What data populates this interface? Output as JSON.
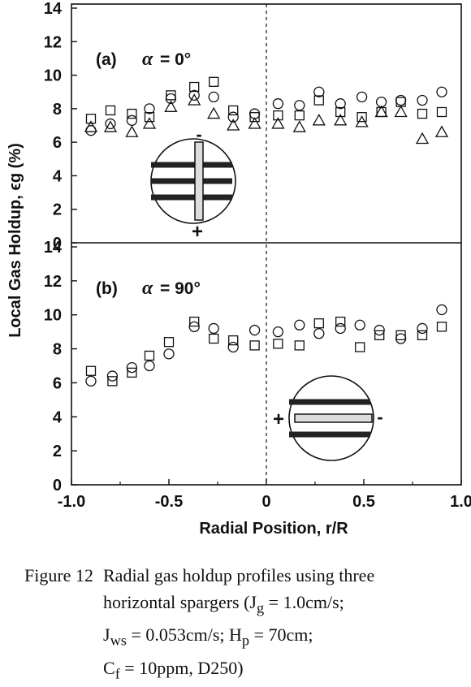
{
  "chart_data": [
    {
      "type": "scatter",
      "panel_label": "(b)",
      "alpha_symbol": "α",
      "panel_angle": "= 90°",
      "xlabel": "Radial Position, r/R",
      "ylabel": "Local Gas Holdup, ϵg (%)",
      "xlim": [
        -1.0,
        1.0
      ],
      "ylim": [
        0,
        14
      ],
      "x_ticks": [
        "-1.0",
        "-0.5",
        "0",
        "0.5",
        "1.0"
      ],
      "y_ticks": [
        "0",
        "2",
        "4",
        "6",
        "8",
        "10",
        "12",
        "14"
      ],
      "series": [
        {
          "marker": "square",
          "x": [
            -0.9,
            -0.79,
            -0.69,
            -0.6,
            -0.5,
            -0.37,
            -0.27,
            -0.17,
            -0.06,
            0.06,
            0.17,
            0.27,
            0.38,
            0.48,
            0.58,
            0.69,
            0.8,
            0.9
          ],
          "y": [
            6.7,
            6.1,
            6.6,
            7.6,
            8.4,
            9.6,
            8.6,
            8.5,
            8.2,
            8.3,
            8.2,
            9.5,
            9.6,
            8.1,
            8.8,
            8.8,
            8.8,
            9.3
          ]
        },
        {
          "marker": "circle",
          "x": [
            -0.9,
            -0.79,
            -0.69,
            -0.6,
            -0.5,
            -0.37,
            -0.27,
            -0.17,
            -0.06,
            0.06,
            0.17,
            0.27,
            0.38,
            0.48,
            0.58,
            0.69,
            0.8,
            0.9
          ],
          "y": [
            6.1,
            6.4,
            6.9,
            7.0,
            7.7,
            9.3,
            9.2,
            8.1,
            9.1,
            9.0,
            9.4,
            8.9,
            9.2,
            9.4,
            9.1,
            8.6,
            9.2,
            10.3
          ]
        }
      ],
      "inset": {
        "plus": "+",
        "minus": "-"
      }
    },
    {
      "type": "scatter",
      "panel_label": "(a)",
      "alpha_symbol": "α",
      "panel_angle": "= 0°",
      "xlim": [
        -1.0,
        1.0
      ],
      "ylim": [
        0,
        14
      ],
      "y_ticks": [
        "0",
        "2",
        "4",
        "6",
        "8",
        "10",
        "12",
        "14"
      ],
      "series": [
        {
          "marker": "square",
          "x": [
            -0.9,
            -0.8,
            -0.69,
            -0.6,
            -0.49,
            -0.37,
            -0.27,
            -0.17,
            -0.06,
            0.06,
            0.17,
            0.27,
            0.38,
            0.49,
            0.59,
            0.69,
            0.8,
            0.9
          ],
          "y": [
            7.4,
            7.9,
            7.7,
            7.5,
            8.8,
            9.3,
            9.6,
            7.9,
            7.5,
            7.6,
            7.6,
            8.5,
            7.8,
            7.5,
            7.8,
            8.4,
            7.7,
            7.8
          ]
        },
        {
          "marker": "circle",
          "x": [
            -0.9,
            -0.8,
            -0.69,
            -0.6,
            -0.49,
            -0.37,
            -0.27,
            -0.17,
            -0.06,
            0.06,
            0.17,
            0.27,
            0.38,
            0.49,
            0.59,
            0.69,
            0.8,
            0.9
          ],
          "y": [
            6.7,
            7.1,
            7.3,
            8.0,
            8.6,
            8.8,
            8.7,
            7.5,
            7.7,
            8.3,
            8.2,
            9.0,
            8.3,
            8.7,
            8.4,
            8.5,
            8.5,
            9.0
          ]
        },
        {
          "marker": "triangle",
          "x": [
            -0.9,
            -0.8,
            -0.69,
            -0.6,
            -0.49,
            -0.37,
            -0.27,
            -0.17,
            -0.06,
            0.06,
            0.17,
            0.27,
            0.38,
            0.49,
            0.59,
            0.69,
            0.8,
            0.9
          ],
          "y": [
            6.9,
            6.9,
            6.6,
            7.1,
            8.1,
            8.5,
            7.7,
            7.0,
            7.1,
            7.1,
            6.9,
            7.3,
            7.3,
            7.2,
            7.8,
            7.8,
            6.2,
            6.6
          ]
        }
      ],
      "inset": {
        "plus": "+",
        "minus": "-"
      }
    }
  ],
  "caption": {
    "number": "Figure 12",
    "line1": "Radial gas holdup profiles using three",
    "line2": "horizontal spargers (J",
    "line2_sub": "g",
    "line2_rest": " = 1.0cm/s;",
    "line3": "J",
    "line3_sub": "ws",
    "line3_rest": " = 0.053cm/s; H",
    "line3_sub2": "p",
    "line3_rest2": " = 70cm;",
    "line4": "C",
    "line4_sub": "f",
    "line4_rest": " = 10ppm, D250)"
  }
}
